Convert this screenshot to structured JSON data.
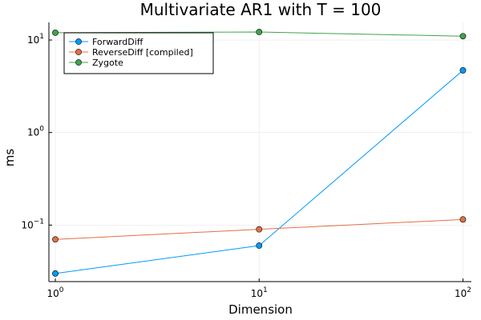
{
  "chart_data": {
    "type": "line",
    "title": "Multivariate AR1 with T = 100",
    "xlabel": "Dimension",
    "ylabel": "ms",
    "xscale": "log10",
    "yscale": "log10",
    "xlim": [
      0.93,
      110
    ],
    "ylim": [
      0.0245,
      15.5
    ],
    "x": [
      1,
      10,
      100
    ],
    "xticks": [
      {
        "value": 1,
        "base": "10",
        "exp": "0"
      },
      {
        "value": 10,
        "base": "10",
        "exp": "1"
      },
      {
        "value": 100,
        "base": "10",
        "exp": "2"
      }
    ],
    "yticks": [
      {
        "value": 0.1,
        "base": "10",
        "exp": "−1"
      },
      {
        "value": 1,
        "base": "10",
        "exp": "0"
      },
      {
        "value": 10,
        "base": "10",
        "exp": "1"
      }
    ],
    "grid": true,
    "legend_position": "top-left",
    "series": [
      {
        "name": "ForwardDiff",
        "color": "#009af9",
        "values": [
          0.03,
          0.06,
          4.7
        ]
      },
      {
        "name": "ReverseDiff [compiled]",
        "color": "#e26f46",
        "values": [
          0.07,
          0.09,
          0.115
        ]
      },
      {
        "name": "Zygote",
        "color": "#3da44d",
        "values": [
          12.0,
          12.2,
          11.0
        ]
      }
    ]
  }
}
